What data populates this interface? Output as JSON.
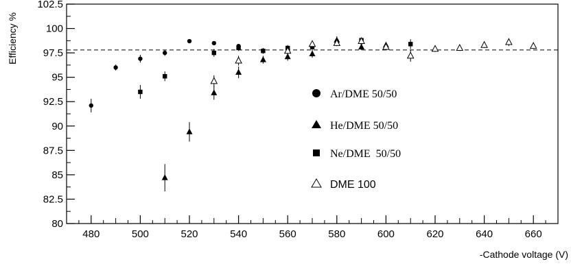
{
  "chart_data": {
    "type": "scatter",
    "xlabel": "-Cathode voltage (V)",
    "ylabel": "Efficiency %",
    "xlim": [
      470,
      670
    ],
    "ylim": [
      80,
      102.5
    ],
    "x_ticks": [
      480,
      500,
      520,
      540,
      560,
      580,
      600,
      620,
      640,
      660
    ],
    "y_ticks": [
      80,
      82.5,
      85,
      87.5,
      90,
      92.5,
      95,
      97.5,
      100,
      102.5
    ],
    "x_tick_labels": [
      "480",
      "500",
      "520",
      "540",
      "560",
      "580",
      "600",
      "620",
      "640",
      "660"
    ],
    "y_tick_labels": [
      "80",
      "82.5",
      "85",
      "87.5",
      "90",
      "92.5",
      "95",
      "97.5",
      "100",
      "102.5"
    ],
    "reference_line": {
      "y": 97.8,
      "style": "dashed"
    },
    "legend_placement": "center-right",
    "series": [
      {
        "name": "Ar/DME 50/50",
        "marker": "circle",
        "points": [
          {
            "x": 480,
            "y": 92.1,
            "err": 0.7
          },
          {
            "x": 490,
            "y": 96.0,
            "err": 0.3
          },
          {
            "x": 500,
            "y": 96.9,
            "err": 0.4
          },
          {
            "x": 510,
            "y": 97.5,
            "err": 0.3
          },
          {
            "x": 520,
            "y": 98.7,
            "err": 0.2
          },
          {
            "x": 530,
            "y": 98.5,
            "err": 0.2
          },
          {
            "x": 540,
            "y": 98.2,
            "err": 0.2
          },
          {
            "x": 560,
            "y": 98.0,
            "err": 0.2
          },
          {
            "x": 570,
            "y": 98.2,
            "err": 0.2
          },
          {
            "x": 580,
            "y": 98.7,
            "err": 0.3
          },
          {
            "x": 590,
            "y": 98.6,
            "err": 0.2
          },
          {
            "x": 600,
            "y": 98.0,
            "err": 0.2
          }
        ]
      },
      {
        "name": "He/DME 50/50",
        "marker": "triangle-filled",
        "points": [
          {
            "x": 510,
            "y": 84.7,
            "err": 1.4
          },
          {
            "x": 520,
            "y": 89.4,
            "err": 1.0
          },
          {
            "x": 530,
            "y": 93.4,
            "err": 0.7
          },
          {
            "x": 540,
            "y": 95.5,
            "err": 0.6
          },
          {
            "x": 550,
            "y": 96.8,
            "err": 0.4
          },
          {
            "x": 560,
            "y": 97.1,
            "err": 0.4
          },
          {
            "x": 570,
            "y": 97.4,
            "err": 0.4
          },
          {
            "x": 580,
            "y": 98.8,
            "err": 0.4
          },
          {
            "x": 590,
            "y": 98.1,
            "err": 0.3
          },
          {
            "x": 600,
            "y": 98.3,
            "err": 0.3
          }
        ]
      },
      {
        "name": "Ne/DME  50/50",
        "marker": "square",
        "points": [
          {
            "x": 500,
            "y": 93.5,
            "err": 0.7
          },
          {
            "x": 510,
            "y": 95.1,
            "err": 0.5
          },
          {
            "x": 530,
            "y": 97.5,
            "err": 0.4
          },
          {
            "x": 540,
            "y": 98.0,
            "err": 0.3
          },
          {
            "x": 550,
            "y": 97.7,
            "err": 0.3
          },
          {
            "x": 560,
            "y": 98.0,
            "err": 0.3
          },
          {
            "x": 570,
            "y": 98.1,
            "err": 0.3
          },
          {
            "x": 580,
            "y": 98.5,
            "err": 0.3
          },
          {
            "x": 590,
            "y": 98.8,
            "err": 0.2
          },
          {
            "x": 610,
            "y": 98.4,
            "err": 0.5
          }
        ]
      },
      {
        "name": "DME 100",
        "marker": "triangle-open",
        "points": [
          {
            "x": 530,
            "y": 94.6,
            "err": 0.6
          },
          {
            "x": 540,
            "y": 96.7,
            "err": 0.5
          },
          {
            "x": 560,
            "y": 97.7,
            "err": 0.4
          },
          {
            "x": 570,
            "y": 98.4,
            "err": 0.3
          },
          {
            "x": 580,
            "y": 98.5,
            "err": 0.3
          },
          {
            "x": 590,
            "y": 98.7,
            "err": 0.3
          },
          {
            "x": 600,
            "y": 98.1,
            "err": 0.3
          },
          {
            "x": 610,
            "y": 97.2,
            "err": 0.6
          },
          {
            "x": 620,
            "y": 97.9,
            "err": 0.3
          },
          {
            "x": 630,
            "y": 98.0,
            "err": 0.3
          },
          {
            "x": 640,
            "y": 98.3,
            "err": 0.3
          },
          {
            "x": 650,
            "y": 98.6,
            "err": 0.4
          },
          {
            "x": 660,
            "y": 98.2,
            "err": 0.3
          }
        ]
      }
    ]
  }
}
